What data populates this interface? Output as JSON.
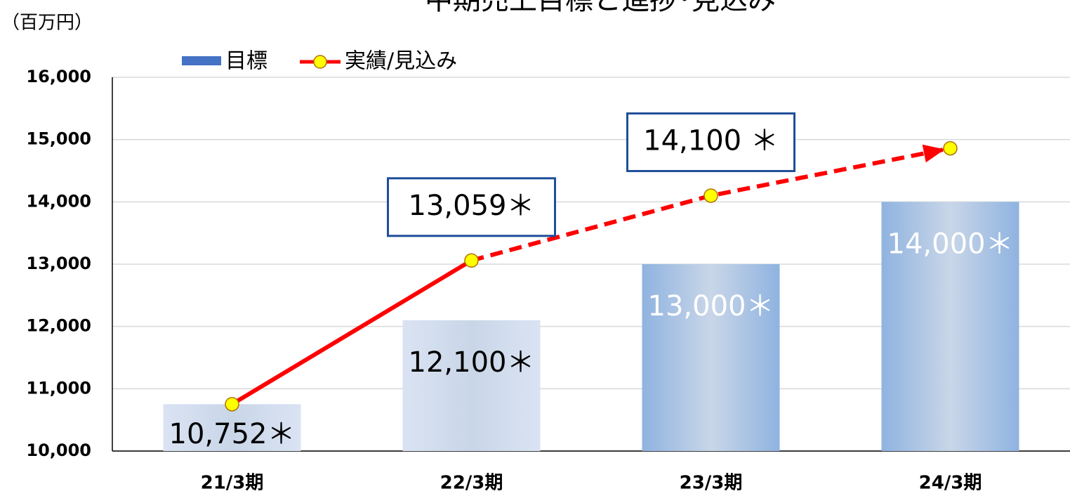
{
  "chart_data": {
    "type": "bar_line",
    "title": "中期売上目標と進捗･見込み",
    "y_axis_label": "（百万円）",
    "categories": [
      "21/3期",
      "22/3期",
      "23/3期",
      "24/3期"
    ],
    "series": [
      {
        "name": "目標",
        "type": "bar",
        "color": "#4472c4",
        "bar_colors": [
          "#dae3f3",
          "#dae3f3",
          "#8fb3e0",
          "#8fb3e0"
        ],
        "label_colors": [
          "#000000",
          "#000000",
          "#ffffff",
          "#ffffff"
        ],
        "values": [
          10752,
          12100,
          13000,
          14000
        ],
        "value_labels": [
          "10,752＊",
          "12,100＊",
          "13,000＊",
          "14,000＊"
        ]
      },
      {
        "name": "実績/見込み",
        "type": "line",
        "color": "#ff0000",
        "marker_color": "#ffff00",
        "dashed_from": 1,
        "values": [
          10752,
          13059,
          14100,
          14860
        ],
        "value_labels": [
          null,
          "13,059＊",
          "14,100 ＊",
          null
        ]
      }
    ],
    "ylim": [
      10000,
      16000
    ],
    "yticks": [
      {
        "value": 10000,
        "label": "10,000"
      },
      {
        "value": 11000,
        "label": "11,000"
      },
      {
        "value": 12000,
        "label": "12,000"
      },
      {
        "value": 13000,
        "label": "13,000"
      },
      {
        "value": 14000,
        "label": "14,000"
      },
      {
        "value": 15000,
        "label": "15,000"
      },
      {
        "value": 16000,
        "label": "16,000"
      }
    ],
    "grid": true
  }
}
